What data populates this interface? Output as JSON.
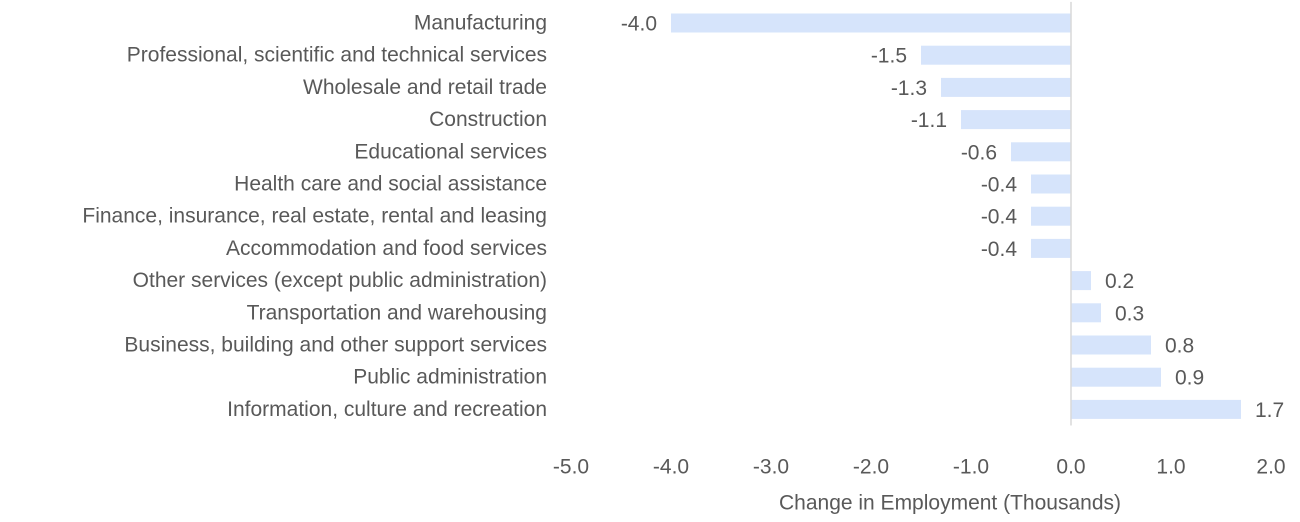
{
  "chart_data": {
    "type": "bar",
    "orientation": "horizontal",
    "categories": [
      "Manufacturing",
      "Professional, scientific and technical services",
      "Wholesale and retail trade",
      "Construction",
      "Educational services",
      "Health care and social assistance",
      "Finance, insurance, real estate, rental and leasing",
      "Accommodation and food services",
      "Other services (except public administration)",
      "Transportation and warehousing",
      "Business, building and other support services",
      "Public administration",
      "Information, culture and recreation"
    ],
    "values": [
      -4.0,
      -1.5,
      -1.3,
      -1.1,
      -0.6,
      -0.4,
      -0.4,
      -0.4,
      0.2,
      0.3,
      0.8,
      0.9,
      1.7
    ],
    "value_labels": [
      "-4.0",
      "-1.5",
      "-1.3",
      "-1.1",
      "-0.6",
      "-0.4",
      "-0.4",
      "-0.4",
      "0.2",
      "0.3",
      "0.8",
      "0.9",
      "1.7"
    ],
    "xlabel": "Change in Employment (Thousands)",
    "ylabel": "",
    "xlim": [
      -5.0,
      2.0
    ],
    "x_ticks": [
      -5.0,
      -4.0,
      -3.0,
      -2.0,
      -1.0,
      0.0,
      1.0,
      2.0
    ],
    "x_tick_labels": [
      "-5.0",
      "-4.0",
      "-3.0",
      "-2.0",
      "-1.0",
      "0.0",
      "1.0",
      "2.0"
    ],
    "grid": false,
    "legend": "none",
    "colors": {
      "bar": "#d6e4fb",
      "text": "#595959",
      "zero_line": "#d9d9d9"
    }
  }
}
